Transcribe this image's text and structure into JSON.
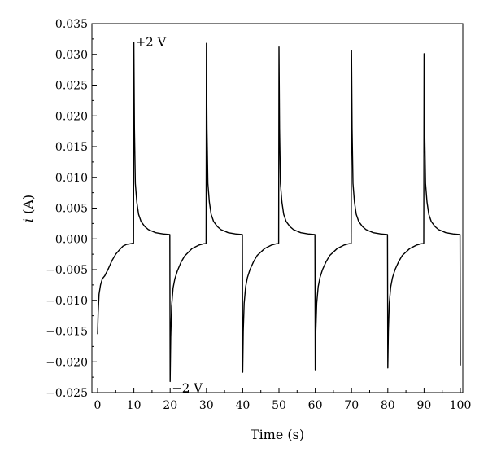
{
  "chart_data": {
    "type": "line",
    "title": "",
    "xlabel": "Time (s)",
    "ylabel_italic": "i",
    "ylabel_rest": " (A)",
    "xlim": [
      0,
      100
    ],
    "ylim": [
      -0.025,
      0.035
    ],
    "xticks": [
      "0",
      "10",
      "20",
      "30",
      "40",
      "50",
      "60",
      "70",
      "80",
      "90",
      "100"
    ],
    "yticks": [
      "0.035",
      "0.030",
      "0.025",
      "0.020",
      "0.015",
      "0.010",
      "0.005",
      "0.000",
      "-0.005",
      "-0.010",
      "-0.015",
      "-0.020",
      "-0.025"
    ],
    "grid": false,
    "line_color": "#000000",
    "annotations": [
      {
        "label": "+2 V",
        "x": 10,
        "y": 0.032
      },
      {
        "label": "−2 V",
        "x": 20,
        "y": -0.0232
      }
    ],
    "series": [
      {
        "x": [
          0,
          0.15,
          0.4,
          0.8,
          1.3,
          2.0,
          3.0,
          4.0,
          5.0,
          6.0,
          7.0,
          8.0,
          9.0,
          9.9,
          10,
          10.15,
          10.4,
          10.8,
          11.3,
          12.0,
          13.0,
          14.0,
          16.0,
          18.0,
          19.9,
          20,
          20.15,
          20.4,
          20.8,
          21.3,
          22.0,
          23.0,
          24.0,
          26.0,
          28.0,
          29.9,
          30,
          30.15,
          30.4,
          30.8,
          31.3,
          32.0,
          33.0,
          34.0,
          36.0,
          38.0,
          39.9,
          40,
          40.15,
          40.4,
          40.8,
          41.3,
          42.0,
          43.0,
          44.0,
          46.0,
          48.0,
          49.9,
          50,
          50.15,
          50.4,
          50.8,
          51.3,
          52.0,
          53.0,
          54.0,
          56.0,
          58.0,
          59.9,
          60,
          60.15,
          60.4,
          60.8,
          61.3,
          62.0,
          63.0,
          64.0,
          66.0,
          68.0,
          69.9,
          70,
          70.15,
          70.4,
          70.8,
          71.3,
          72.0,
          73.0,
          74.0,
          76.0,
          78.0,
          79.9,
          80,
          80.15,
          80.4,
          80.8,
          81.3,
          82.0,
          83.0,
          84.0,
          86.0,
          88.0,
          89.9,
          90,
          90.15,
          90.4,
          90.8,
          91.3,
          92.0,
          93.0,
          94.0,
          96.0,
          98.0,
          99.9,
          100
        ],
        "y": [
          -0.0155,
          -0.012,
          -0.009,
          -0.0075,
          -0.0065,
          -0.006,
          -0.0048,
          -0.0035,
          -0.0025,
          -0.0018,
          -0.0012,
          -0.0009,
          -0.0008,
          -0.0007,
          0.032,
          0.018,
          0.009,
          0.006,
          0.004,
          0.0028,
          0.002,
          0.0015,
          0.001,
          0.0008,
          0.0007,
          -0.0232,
          -0.016,
          -0.011,
          -0.008,
          -0.0065,
          -0.0052,
          -0.0038,
          -0.0028,
          -0.0016,
          -0.001,
          -0.0007,
          0.0318,
          0.018,
          0.009,
          0.006,
          0.004,
          0.0028,
          0.002,
          0.0015,
          0.001,
          0.0008,
          0.0007,
          -0.0217,
          -0.015,
          -0.0105,
          -0.0078,
          -0.0063,
          -0.005,
          -0.0037,
          -0.0027,
          -0.0016,
          -0.001,
          -0.0007,
          0.0312,
          0.018,
          0.009,
          0.006,
          0.004,
          0.0028,
          0.002,
          0.0015,
          0.001,
          0.0008,
          0.0007,
          -0.0213,
          -0.015,
          -0.0105,
          -0.0078,
          -0.0063,
          -0.005,
          -0.0037,
          -0.0027,
          -0.0016,
          -0.001,
          -0.0007,
          0.0306,
          0.018,
          0.009,
          0.006,
          0.004,
          0.0028,
          0.002,
          0.0015,
          0.001,
          0.0008,
          0.0007,
          -0.021,
          -0.015,
          -0.0105,
          -0.0078,
          -0.0063,
          -0.005,
          -0.0037,
          -0.0027,
          -0.0016,
          -0.001,
          -0.0007,
          0.0301,
          0.018,
          0.009,
          0.006,
          0.004,
          0.0028,
          0.002,
          0.0015,
          0.001,
          0.0008,
          0.0007,
          -0.0206
        ]
      }
    ]
  }
}
